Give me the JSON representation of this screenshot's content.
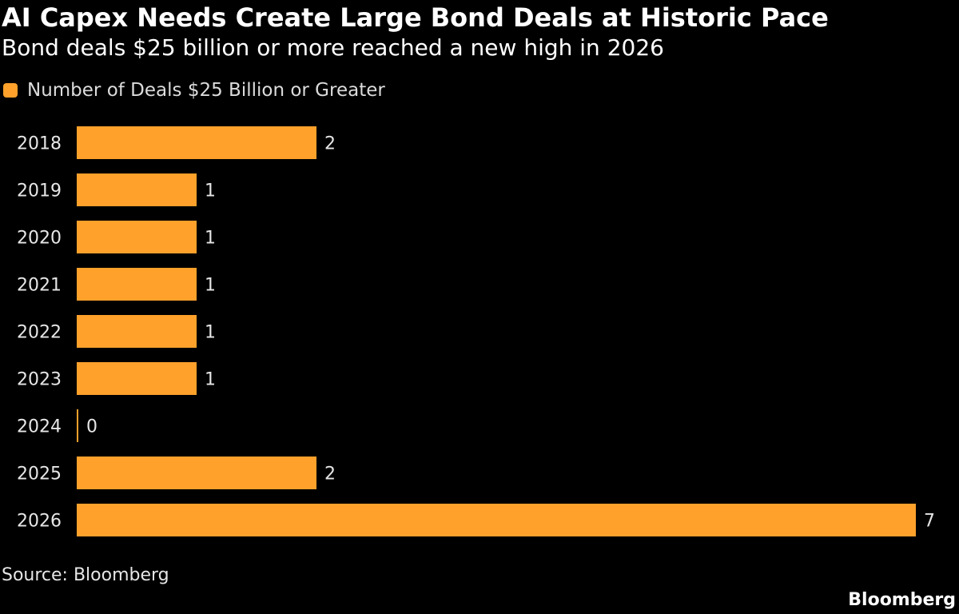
{
  "title": "AI Capex Needs Create Large Bond Deals at Historic Pace",
  "subtitle": "Bond deals $25 billion or more reached a new high in 2026",
  "legend": {
    "label": "Number of Deals $25 Billion or Greater",
    "color": "#ffa12b"
  },
  "source": "Source: Bloomberg",
  "brand": "Bloomberg",
  "colors": {
    "background": "#000000",
    "bar": "#ffa12b",
    "text": "#ffffff"
  },
  "chart_data": {
    "type": "bar",
    "orientation": "horizontal",
    "categories": [
      "2018",
      "2019",
      "2020",
      "2021",
      "2022",
      "2023",
      "2024",
      "2025",
      "2026"
    ],
    "series": [
      {
        "name": "Number of Deals $25 Billion or Greater",
        "values": [
          2,
          1,
          1,
          1,
          1,
          1,
          0,
          2,
          7
        ]
      }
    ],
    "value_labels": [
      "2",
      "1",
      "1",
      "1",
      "1",
      "1",
      "0",
      "2",
      "7"
    ],
    "xlim": [
      0,
      7
    ],
    "grid": false,
    "legend_position": "top-left"
  }
}
